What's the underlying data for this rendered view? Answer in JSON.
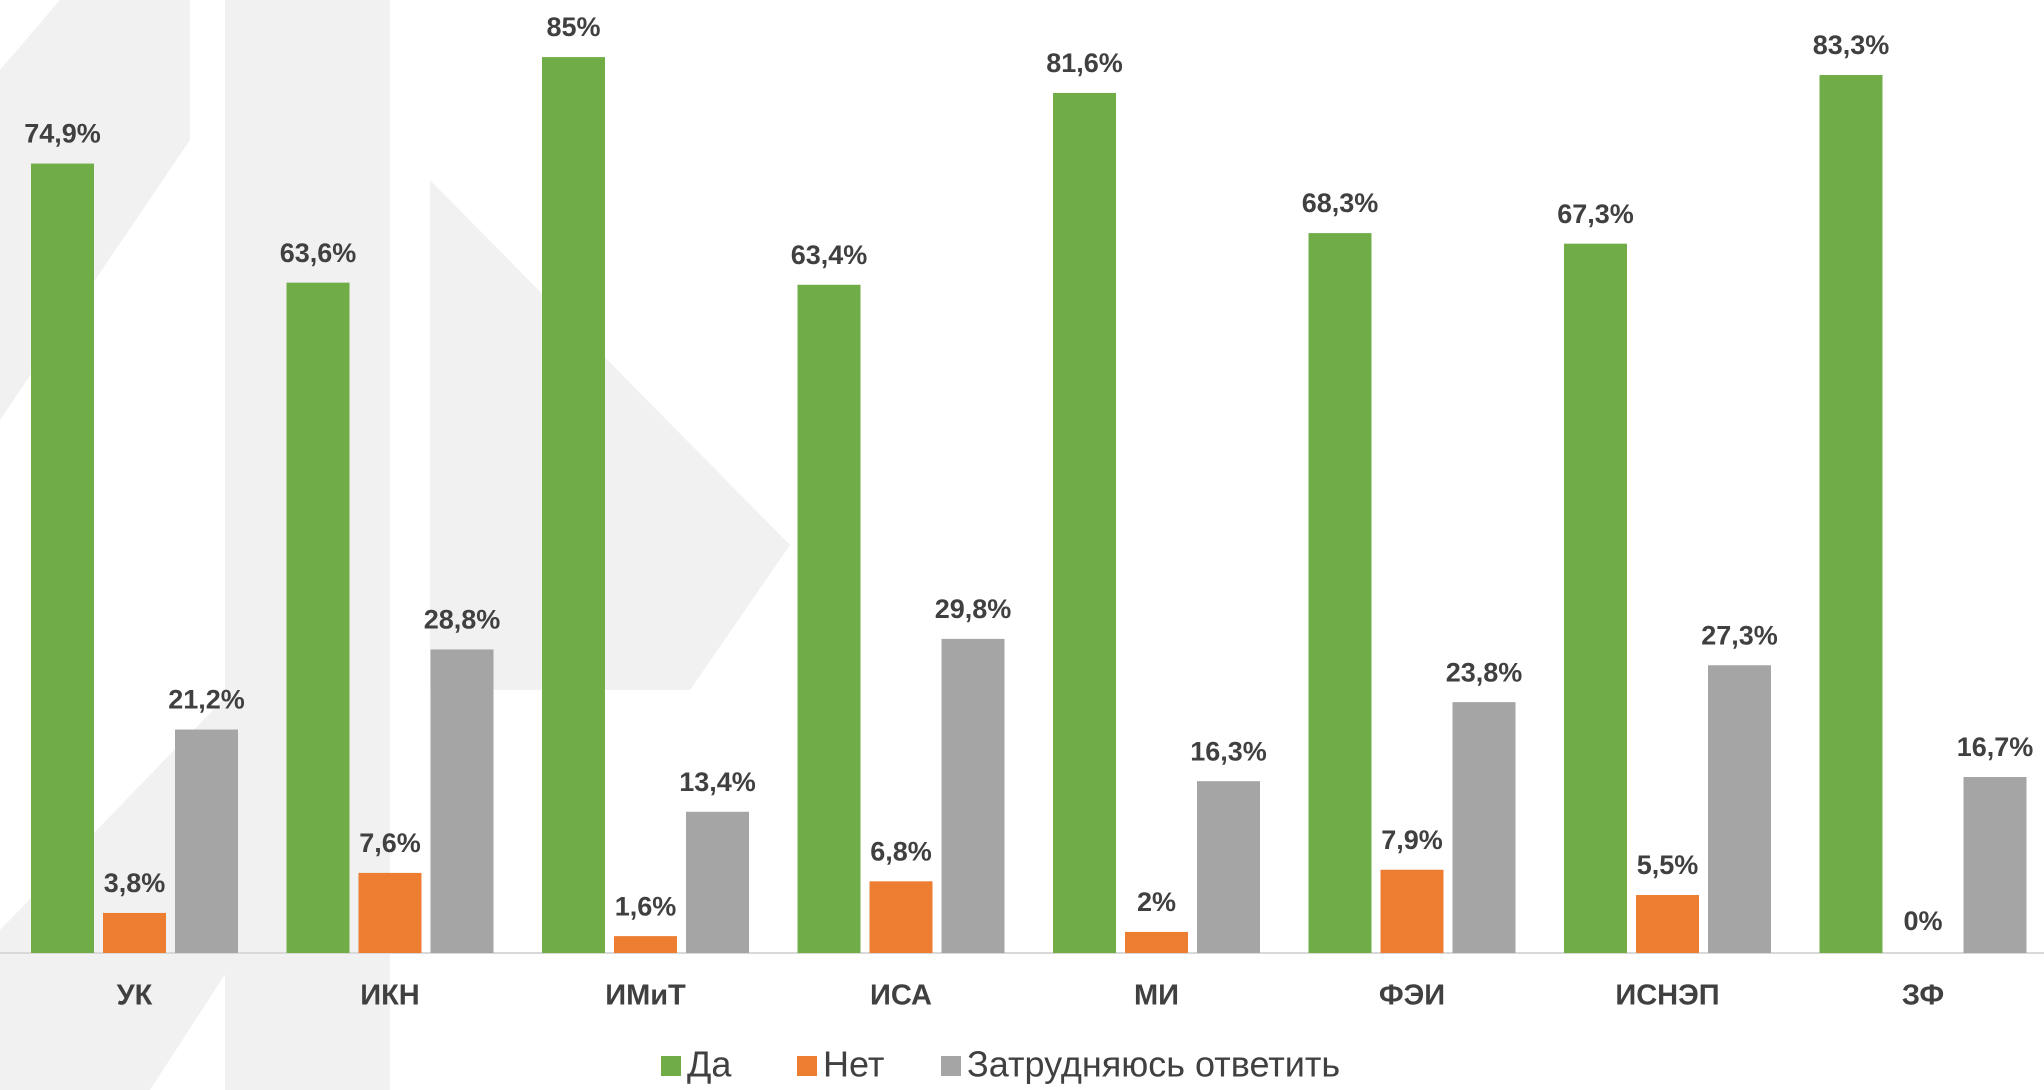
{
  "chart_data": {
    "type": "bar",
    "categories": [
      "УК",
      "ИКН",
      "ИМиТ",
      "ИСА",
      "МИ",
      "ФЭИ",
      "ИСНЭП",
      "ЗФ"
    ],
    "series": [
      {
        "name": "Да",
        "color": "#70ad47",
        "values": [
          74.9,
          63.6,
          85,
          63.4,
          81.6,
          68.3,
          67.3,
          83.3
        ],
        "value_labels": [
          "74,9%",
          "63,6%",
          "85%",
          "63,4%",
          "81,6%",
          "68,3%",
          "67,3%",
          "83,3%"
        ]
      },
      {
        "name": "Нет",
        "color": "#ed7d31",
        "values": [
          3.8,
          7.6,
          1.6,
          6.8,
          2,
          7.9,
          5.5,
          0
        ],
        "value_labels": [
          "3,8%",
          "7,6%",
          "1,6%",
          "6,8%",
          "2%",
          "7,9%",
          "5,5%",
          "0%"
        ]
      },
      {
        "name": "Затрудняюсь ответить",
        "color": "#a5a5a5",
        "values": [
          21.2,
          28.8,
          13.4,
          29.8,
          16.3,
          23.8,
          27.3,
          16.7
        ],
        "value_labels": [
          "21,2%",
          "28,8%",
          "13,4%",
          "29,8%",
          "16,3%",
          "23,8%",
          "27,3%",
          "16,7%"
        ]
      }
    ]
  }
}
